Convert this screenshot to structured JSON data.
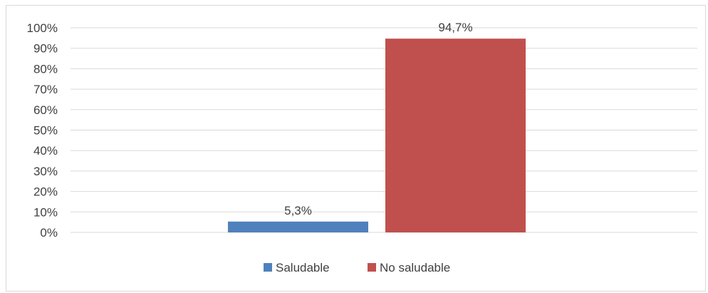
{
  "chart_data": {
    "type": "bar",
    "title": "",
    "xlabel": "",
    "ylabel": "",
    "ylim": [
      0,
      100
    ],
    "ytick_step": 10,
    "ytick_suffix": "%",
    "grid": true,
    "legend_position": "bottom",
    "categories": [
      ""
    ],
    "series": [
      {
        "name": "Saludable",
        "values": [
          5.3
        ],
        "label": "5,3%",
        "color": "#4f81bd"
      },
      {
        "name": "No saludable",
        "values": [
          94.7
        ],
        "label": "94,7%",
        "color": "#c0504d"
      }
    ]
  }
}
